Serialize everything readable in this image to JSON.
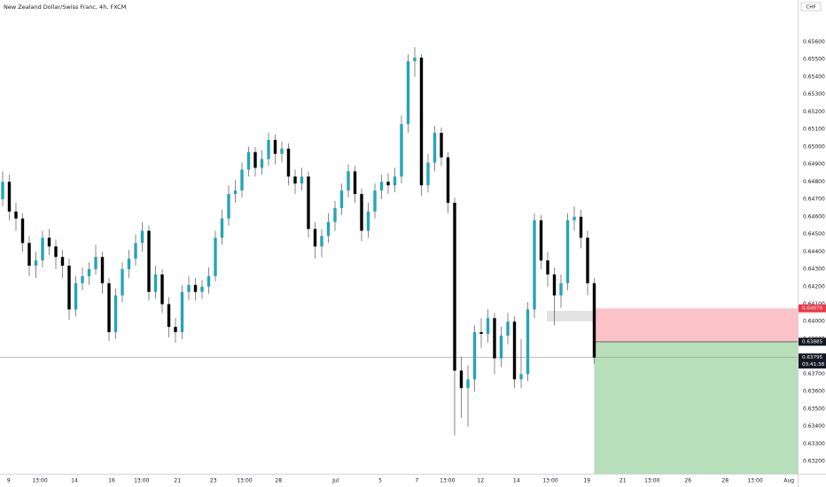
{
  "chart_data": {
    "type": "candlestick",
    "title": "New Zealand Dollar/Swiss Franc, 4h, FXCM",
    "currency_label": "CHF",
    "up_color": "#26a5b5",
    "down_color": "#000000",
    "wick_color": "#555555",
    "grid": false,
    "xlim": [
      -0.4,
      119.6
    ],
    "xticks": [
      {
        "value": 0.9,
        "label": "9"
      },
      {
        "value": 5.6,
        "label": "13:00"
      },
      {
        "value": 10.8,
        "label": "14"
      },
      {
        "value": 16.4,
        "label": "16"
      },
      {
        "value": 20.9,
        "label": "13:00"
      },
      {
        "value": 26.3,
        "label": "21"
      },
      {
        "value": 31.7,
        "label": "23"
      },
      {
        "value": 36.4,
        "label": "13:00"
      },
      {
        "value": 41.5,
        "label": "28"
      },
      {
        "value": 50.1,
        "label": "Jul"
      },
      {
        "value": 56.8,
        "label": "5"
      },
      {
        "value": 62.3,
        "label": "7"
      },
      {
        "value": 66.9,
        "label": "13:00"
      },
      {
        "value": 71.9,
        "label": "12"
      },
      {
        "value": 77.3,
        "label": "14"
      },
      {
        "value": 82.4,
        "label": "13:00"
      },
      {
        "value": 87.9,
        "label": "19"
      },
      {
        "value": 93.3,
        "label": "21"
      },
      {
        "value": 97.7,
        "label": "13:00"
      },
      {
        "value": 103.1,
        "label": "26"
      },
      {
        "value": 108.7,
        "label": "28"
      },
      {
        "value": 113.2,
        "label": "13:00"
      },
      {
        "value": 118.3,
        "label": "Aug"
      }
    ],
    "ylim": [
      0.6313,
      0.6584
    ],
    "yticks": [
      {
        "value": 0.632,
        "label": "0.63200"
      },
      {
        "value": 0.633,
        "label": "0.63300"
      },
      {
        "value": 0.634,
        "label": "0.63400"
      },
      {
        "value": 0.635,
        "label": "0.63500"
      },
      {
        "value": 0.636,
        "label": "0.63600"
      },
      {
        "value": 0.637,
        "label": "0.63700"
      },
      {
        "value": 0.638,
        "label": "0.63800"
      },
      {
        "value": 0.639,
        "label": "0.63900"
      },
      {
        "value": 0.64,
        "label": "0.64000"
      },
      {
        "value": 0.641,
        "label": "0.64100"
      },
      {
        "value": 0.642,
        "label": "0.64200"
      },
      {
        "value": 0.643,
        "label": "0.64300"
      },
      {
        "value": 0.644,
        "label": "0.64400"
      },
      {
        "value": 0.645,
        "label": "0.64500"
      },
      {
        "value": 0.646,
        "label": "0.64600"
      },
      {
        "value": 0.647,
        "label": "0.64700"
      },
      {
        "value": 0.648,
        "label": "0.64800"
      },
      {
        "value": 0.649,
        "label": "0.64900"
      },
      {
        "value": 0.65,
        "label": "0.65000"
      },
      {
        "value": 0.651,
        "label": "0.65100"
      },
      {
        "value": 0.652,
        "label": "0.65200"
      },
      {
        "value": 0.653,
        "label": "0.65300"
      },
      {
        "value": 0.654,
        "label": "0.65400"
      },
      {
        "value": 0.655,
        "label": "0.65500"
      },
      {
        "value": 0.656,
        "label": "0.65600"
      }
    ],
    "open": [
      0.647,
      0.648,
      0.6463,
      0.6459,
      0.6445,
      0.6432,
      0.6435,
      0.6448,
      0.6443,
      0.6437,
      0.6432,
      0.6407,
      0.6422,
      0.6426,
      0.643,
      0.6437,
      0.6422,
      0.6394,
      0.6415,
      0.643,
      0.6436,
      0.6445,
      0.6452,
      0.6417,
      0.6427,
      0.641,
      0.6397,
      0.6394,
      0.6417,
      0.6421,
      0.6417,
      0.642,
      0.6426,
      0.6448,
      0.6459,
      0.6473,
      0.6475,
      0.6487,
      0.6497,
      0.6488,
      0.6493,
      0.6504,
      0.6496,
      0.6499,
      0.6483,
      0.6479,
      0.6483,
      0.6453,
      0.6443,
      0.6449,
      0.6457,
      0.6465,
      0.6475,
      0.6486,
      0.6473,
      0.6452,
      0.6463,
      0.6475,
      0.648,
      0.6478,
      0.6483,
      0.6513,
      0.6549,
      0.6551,
      0.6478,
      0.6491,
      0.6508,
      0.6494,
      0.6468,
      0.6372,
      0.6362,
      0.6367,
      0.6394,
      0.6393,
      0.6402,
      0.6379,
      0.6392,
      0.64,
      0.6367,
      0.637,
      0.6407,
      0.6458,
      0.6435,
      0.6427,
      0.6415,
      0.6422,
      0.6458,
      0.646,
      0.6448,
      0.6422
    ],
    "high": [
      0.6486,
      0.6484,
      0.6468,
      0.6462,
      0.6449,
      0.644,
      0.6452,
      0.6453,
      0.6447,
      0.6441,
      0.6436,
      0.6426,
      0.6431,
      0.6434,
      0.6444,
      0.644,
      0.6425,
      0.6419,
      0.6434,
      0.6441,
      0.645,
      0.6457,
      0.6455,
      0.6432,
      0.643,
      0.6414,
      0.6402,
      0.6421,
      0.6426,
      0.6425,
      0.6424,
      0.6431,
      0.6452,
      0.6464,
      0.6478,
      0.6481,
      0.6491,
      0.65,
      0.65,
      0.6498,
      0.6508,
      0.6507,
      0.6503,
      0.6502,
      0.6487,
      0.6488,
      0.6486,
      0.6457,
      0.6453,
      0.6462,
      0.6469,
      0.6479,
      0.649,
      0.6489,
      0.6476,
      0.6468,
      0.6479,
      0.6484,
      0.6485,
      0.6488,
      0.6518,
      0.6553,
      0.6557,
      0.6553,
      0.6496,
      0.6512,
      0.6511,
      0.6497,
      0.6471,
      0.638,
      0.6375,
      0.6398,
      0.6402,
      0.6407,
      0.6405,
      0.6397,
      0.6405,
      0.6403,
      0.639,
      0.6411,
      0.6462,
      0.6461,
      0.644,
      0.6431,
      0.6427,
      0.6462,
      0.6466,
      0.6464,
      0.6452,
      0.6425
    ],
    "low": [
      0.6466,
      0.6458,
      0.6452,
      0.644,
      0.6426,
      0.6425,
      0.6431,
      0.6438,
      0.643,
      0.6425,
      0.6401,
      0.6403,
      0.6418,
      0.6421,
      0.6427,
      0.6416,
      0.6389,
      0.639,
      0.6411,
      0.6425,
      0.6432,
      0.644,
      0.6412,
      0.6413,
      0.6405,
      0.6391,
      0.6388,
      0.639,
      0.6412,
      0.6412,
      0.6413,
      0.6416,
      0.6423,
      0.6444,
      0.6455,
      0.6468,
      0.6471,
      0.6483,
      0.6483,
      0.6484,
      0.6489,
      0.649,
      0.6491,
      0.6478,
      0.6473,
      0.6475,
      0.6448,
      0.6436,
      0.6437,
      0.6445,
      0.6452,
      0.6461,
      0.6471,
      0.6468,
      0.6446,
      0.6448,
      0.6459,
      0.647,
      0.6473,
      0.6474,
      0.6479,
      0.6508,
      0.654,
      0.6472,
      0.6474,
      0.6486,
      0.6489,
      0.6462,
      0.6335,
      0.6345,
      0.634,
      0.636,
      0.6385,
      0.6388,
      0.637,
      0.6374,
      0.6387,
      0.6362,
      0.6362,
      0.6366,
      0.6402,
      0.643,
      0.642,
      0.6398,
      0.6408,
      0.6418,
      0.6452,
      0.6442,
      0.6415,
      0.6376
    ],
    "close": [
      0.648,
      0.6463,
      0.6459,
      0.6445,
      0.6432,
      0.6435,
      0.6448,
      0.6443,
      0.6437,
      0.6432,
      0.6407,
      0.6422,
      0.6426,
      0.643,
      0.6437,
      0.6422,
      0.6394,
      0.6415,
      0.643,
      0.6436,
      0.6445,
      0.6452,
      0.6417,
      0.6427,
      0.641,
      0.6397,
      0.6394,
      0.6417,
      0.6421,
      0.6417,
      0.642,
      0.6426,
      0.6448,
      0.6459,
      0.6473,
      0.6475,
      0.6487,
      0.6497,
      0.6488,
      0.6493,
      0.6504,
      0.6496,
      0.6499,
      0.6483,
      0.6479,
      0.6483,
      0.6453,
      0.6443,
      0.6449,
      0.6457,
      0.6465,
      0.6475,
      0.6486,
      0.6473,
      0.6452,
      0.6463,
      0.6475,
      0.648,
      0.6478,
      0.6483,
      0.6513,
      0.6549,
      0.6551,
      0.6478,
      0.6491,
      0.6508,
      0.6494,
      0.6468,
      0.6372,
      0.6362,
      0.6367,
      0.6394,
      0.6393,
      0.6402,
      0.6379,
      0.6392,
      0.64,
      0.6367,
      0.637,
      0.6407,
      0.6458,
      0.6435,
      0.6427,
      0.6415,
      0.6422,
      0.6458,
      0.646,
      0.6448,
      0.6422,
      0.63795
    ],
    "position": {
      "stop": 0.64076,
      "entry": 0.63885,
      "stop_color": "#f23645",
      "target_color": "#4caf50"
    },
    "last_price": 0.63795,
    "countdown": "03:41:38"
  }
}
